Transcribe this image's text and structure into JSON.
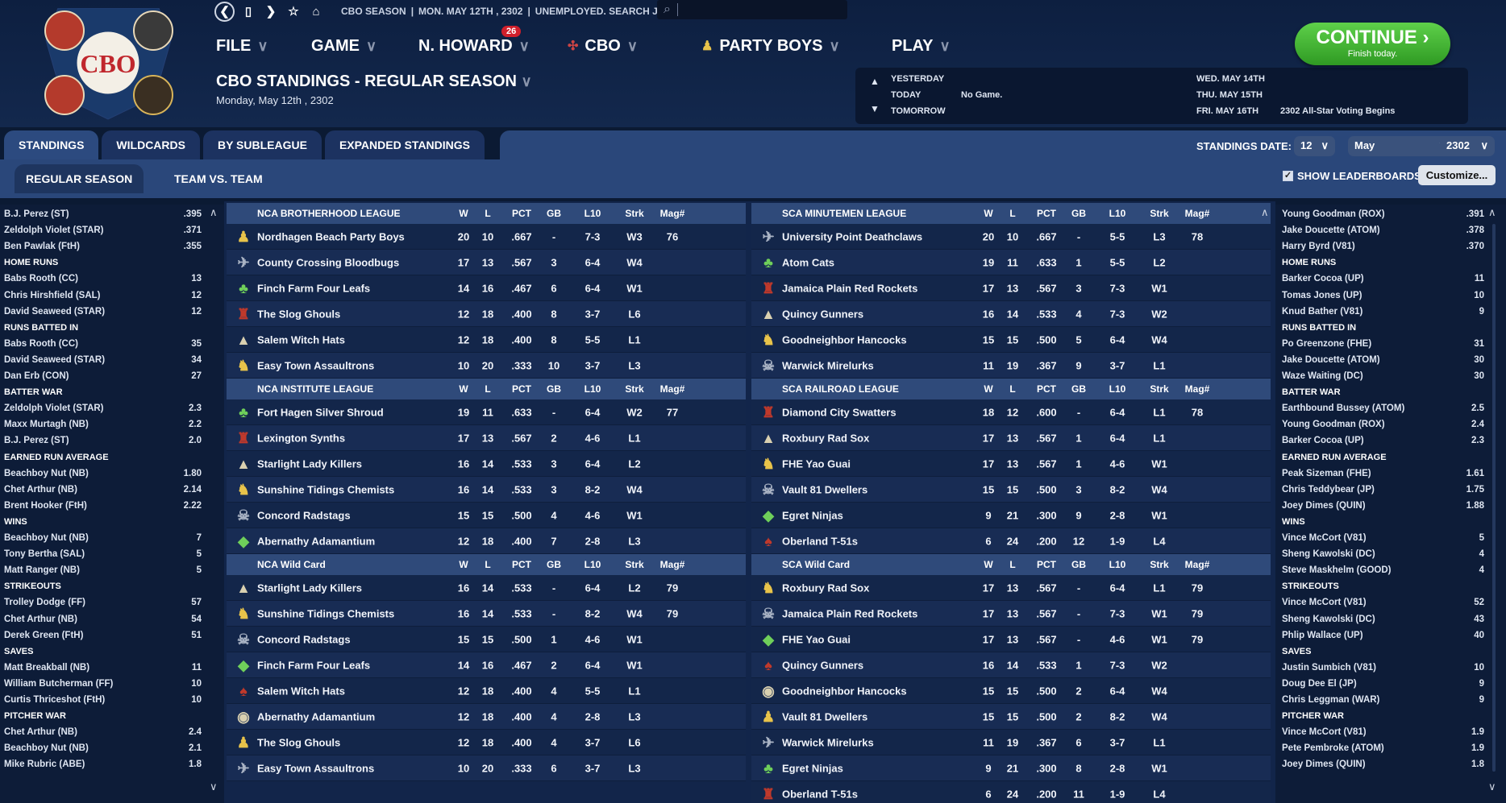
{
  "app": {
    "crumbs": [
      "CBO SEASON",
      "MON. MAY 12TH , 2302",
      "UNEMPLOYED. SEARCH JOBS..."
    ],
    "logo_text": "CBO",
    "nav_icons": [
      "back-icon",
      "forward-icon",
      "bookmark-icon",
      "star-icon",
      "home-icon"
    ]
  },
  "menu": {
    "file": "FILE",
    "game": "GAME",
    "manager": "N. HOWARD",
    "manager_badge": "26",
    "cbo": "CBO",
    "team": "PARTY BOYS",
    "play": "PLAY"
  },
  "page": {
    "title": "CBO STANDINGS - REGULAR SEASON",
    "date": "Monday, May 12th , 2302"
  },
  "calendar": {
    "yesterday": "YESTERDAY",
    "today": "TODAY",
    "today_value": "No Game.",
    "tomorrow": "TOMORROW",
    "d1": "WED. MAY 14TH",
    "d2": "THU. MAY 15TH",
    "d3": "FRI. MAY 16TH",
    "d3_value": "2302 All-Star Voting Begins"
  },
  "continue": {
    "label": "CONTINUE",
    "sub": "Finish today.",
    "color": "#3fb22f"
  },
  "tabs": [
    "STANDINGS",
    "WILDCARDS",
    "BY SUBLEAGUE",
    "EXPANDED STANDINGS"
  ],
  "subtabs": [
    "REGULAR SEASON",
    "TEAM VS. TEAM"
  ],
  "standings_date": {
    "label": "STANDINGS DATE:",
    "day": "12",
    "month": "May",
    "year": "2302"
  },
  "show_leaderboards": "SHOW LEADERBOARDS",
  "customize": "Customize...",
  "left_leaders": [
    [
      "B.J. Perez (ST)",
      ".395"
    ],
    [
      "Zeldolph Violet (STAR)",
      ".371"
    ],
    [
      "Ben Pawlak (FtH)",
      ".355"
    ],
    [
      "HOME RUNS",
      ""
    ],
    [
      "Babs Rooth (CC)",
      "13"
    ],
    [
      "Chris Hirshfield (SAL)",
      "12"
    ],
    [
      "David Seaweed (STAR)",
      "12"
    ],
    [
      "RUNS BATTED IN",
      ""
    ],
    [
      "Babs Rooth (CC)",
      "35"
    ],
    [
      "David Seaweed (STAR)",
      "34"
    ],
    [
      "Dan Erb (CON)",
      "27"
    ],
    [
      "BATTER WAR",
      ""
    ],
    [
      "Zeldolph Violet (STAR)",
      "2.3"
    ],
    [
      "Maxx Murtagh (NB)",
      "2.2"
    ],
    [
      "B.J. Perez (ST)",
      "2.0"
    ],
    [
      "EARNED RUN AVERAGE",
      ""
    ],
    [
      "Beachboy Nut (NB)",
      "1.80"
    ],
    [
      "Chet Arthur (NB)",
      "2.14"
    ],
    [
      "Brent Hooker (FtH)",
      "2.22"
    ],
    [
      "WINS",
      ""
    ],
    [
      "Beachboy Nut (NB)",
      "7"
    ],
    [
      "Tony Bertha (SAL)",
      "5"
    ],
    [
      "Matt Ranger (NB)",
      "5"
    ],
    [
      "STRIKEOUTS",
      ""
    ],
    [
      "Trolley Dodge (FF)",
      "57"
    ],
    [
      "Chet Arthur (NB)",
      "54"
    ],
    [
      "Derek Green (FtH)",
      "51"
    ],
    [
      "SAVES",
      ""
    ],
    [
      "Matt Breakball (NB)",
      "11"
    ],
    [
      "William Butcherman (FF)",
      "10"
    ],
    [
      "Curtis Thriceshot (FtH)",
      "10"
    ],
    [
      "PITCHER WAR",
      ""
    ],
    [
      "Chet Arthur (NB)",
      "2.4"
    ],
    [
      "Beachboy Nut (NB)",
      "2.1"
    ],
    [
      "Mike Rubric (ABE)",
      "1.8"
    ]
  ],
  "right_leaders": [
    [
      "Young Goodman (ROX)",
      ".391"
    ],
    [
      "Jake Doucette (ATOM)",
      ".378"
    ],
    [
      "Harry Byrd (V81)",
      ".370"
    ],
    [
      "HOME RUNS",
      ""
    ],
    [
      "Barker Cocoa (UP)",
      "11"
    ],
    [
      "Tomas Jones (UP)",
      "10"
    ],
    [
      "Knud Bather (V81)",
      "9"
    ],
    [
      "RUNS BATTED IN",
      ""
    ],
    [
      "Po Greenzone (FHE)",
      "31"
    ],
    [
      "Jake Doucette (ATOM)",
      "30"
    ],
    [
      "Waze Waiting (DC)",
      "30"
    ],
    [
      "BATTER WAR",
      ""
    ],
    [
      "Earthbound Bussey (ATOM)",
      "2.5"
    ],
    [
      "Young Goodman (ROX)",
      "2.4"
    ],
    [
      "Barker Cocoa (UP)",
      "2.3"
    ],
    [
      "EARNED RUN AVERAGE",
      ""
    ],
    [
      "Peak Sizeman (FHE)",
      "1.61"
    ],
    [
      "Chris Teddybear (JP)",
      "1.75"
    ],
    [
      "Joey Dimes (QUIN)",
      "1.88"
    ],
    [
      "WINS",
      ""
    ],
    [
      "Vince McCort (V81)",
      "5"
    ],
    [
      "Sheng Kawolski (DC)",
      "4"
    ],
    [
      "Steve Maskhelm (GOOD)",
      "4"
    ],
    [
      "STRIKEOUTS",
      ""
    ],
    [
      "Vince McCort (V81)",
      "52"
    ],
    [
      "Sheng Kawolski (DC)",
      "43"
    ],
    [
      "Phlip Wallace (UP)",
      "40"
    ],
    [
      "SAVES",
      ""
    ],
    [
      "Justin Sumbich (V81)",
      "10"
    ],
    [
      "Doug Dee El (JP)",
      "9"
    ],
    [
      "Chris Leggman (WAR)",
      "9"
    ],
    [
      "PITCHER WAR",
      ""
    ],
    [
      "Vince McCort (V81)",
      "1.9"
    ],
    [
      "Pete Pembroke (ATOM)",
      "1.9"
    ],
    [
      "Joey Dimes (QUIN)",
      "1.8"
    ]
  ],
  "columns": [
    "W",
    "L",
    "PCT",
    "GB",
    "L10",
    "Strk",
    "Mag#"
  ],
  "divisions": [
    {
      "name": "NCA BROTHERHOOD LEAGUE",
      "rows": [
        [
          "Nordhagen Beach Party Boys",
          "20",
          "10",
          ".667",
          "-",
          "7-3",
          "W3",
          "76"
        ],
        [
          "County Crossing Bloodbugs",
          "17",
          "13",
          ".567",
          "3",
          "6-4",
          "W4",
          ""
        ],
        [
          "Finch Farm Four Leafs",
          "14",
          "16",
          ".467",
          "6",
          "6-4",
          "W1",
          ""
        ],
        [
          "The Slog Ghouls",
          "12",
          "18",
          ".400",
          "8",
          "3-7",
          "L6",
          ""
        ],
        [
          "Salem Witch Hats",
          "12",
          "18",
          ".400",
          "8",
          "5-5",
          "L1",
          ""
        ],
        [
          "Easy Town Assaultrons",
          "10",
          "20",
          ".333",
          "10",
          "3-7",
          "L3",
          ""
        ]
      ]
    },
    {
      "name": "SCA MINUTEMEN LEAGUE",
      "rows": [
        [
          "University Point Deathclaws",
          "20",
          "10",
          ".667",
          "-",
          "5-5",
          "L3",
          "78"
        ],
        [
          "Atom Cats",
          "19",
          "11",
          ".633",
          "1",
          "5-5",
          "L2",
          ""
        ],
        [
          "Jamaica Plain Red Rockets",
          "17",
          "13",
          ".567",
          "3",
          "7-3",
          "W1",
          ""
        ],
        [
          "Quincy Gunners",
          "16",
          "14",
          ".533",
          "4",
          "7-3",
          "W2",
          ""
        ],
        [
          "Goodneighbor Hancocks",
          "15",
          "15",
          ".500",
          "5",
          "6-4",
          "W4",
          ""
        ],
        [
          "Warwick Mirelurks",
          "11",
          "19",
          ".367",
          "9",
          "3-7",
          "L1",
          ""
        ]
      ]
    },
    {
      "name": "NCA INSTITUTE LEAGUE",
      "rows": [
        [
          "Fort Hagen Silver Shroud",
          "19",
          "11",
          ".633",
          "-",
          "6-4",
          "W2",
          "77"
        ],
        [
          "Lexington Synths",
          "17",
          "13",
          ".567",
          "2",
          "4-6",
          "L1",
          ""
        ],
        [
          "Starlight Lady Killers",
          "16",
          "14",
          ".533",
          "3",
          "6-4",
          "L2",
          ""
        ],
        [
          "Sunshine Tidings Chemists",
          "16",
          "14",
          ".533",
          "3",
          "8-2",
          "W4",
          ""
        ],
        [
          "Concord Radstags",
          "15",
          "15",
          ".500",
          "4",
          "4-6",
          "W1",
          ""
        ],
        [
          "Abernathy Adamantium",
          "12",
          "18",
          ".400",
          "7",
          "2-8",
          "L3",
          ""
        ]
      ]
    },
    {
      "name": "SCA RAILROAD LEAGUE",
      "rows": [
        [
          "Diamond City Swatters",
          "18",
          "12",
          ".600",
          "-",
          "6-4",
          "L1",
          "78"
        ],
        [
          "Roxbury Rad Sox",
          "17",
          "13",
          ".567",
          "1",
          "6-4",
          "L1",
          ""
        ],
        [
          "FHE Yao Guai",
          "17",
          "13",
          ".567",
          "1",
          "4-6",
          "W1",
          ""
        ],
        [
          "Vault 81 Dwellers",
          "15",
          "15",
          ".500",
          "3",
          "8-2",
          "W4",
          ""
        ],
        [
          "Egret Ninjas",
          "9",
          "21",
          ".300",
          "9",
          "2-8",
          "W1",
          ""
        ],
        [
          "Oberland T-51s",
          "6",
          "24",
          ".200",
          "12",
          "1-9",
          "L4",
          ""
        ]
      ]
    },
    {
      "name": "NCA  Wild Card",
      "rows": [
        [
          "Starlight Lady Killers",
          "16",
          "14",
          ".533",
          "-",
          "6-4",
          "L2",
          "79"
        ],
        [
          "Sunshine Tidings Chemists",
          "16",
          "14",
          ".533",
          "-",
          "8-2",
          "W4",
          "79"
        ],
        [
          "Concord Radstags",
          "15",
          "15",
          ".500",
          "1",
          "4-6",
          "W1",
          ""
        ],
        [
          "Finch Farm Four Leafs",
          "14",
          "16",
          ".467",
          "2",
          "6-4",
          "W1",
          ""
        ],
        [
          "Salem Witch Hats",
          "12",
          "18",
          ".400",
          "4",
          "5-5",
          "L1",
          ""
        ],
        [
          "Abernathy Adamantium",
          "12",
          "18",
          ".400",
          "4",
          "2-8",
          "L3",
          ""
        ],
        [
          "The Slog Ghouls",
          "12",
          "18",
          ".400",
          "4",
          "3-7",
          "L6",
          ""
        ],
        [
          "Easy Town Assaultrons",
          "10",
          "20",
          ".333",
          "6",
          "3-7",
          "L3",
          ""
        ]
      ]
    },
    {
      "name": "SCA  Wild Card",
      "rows": [
        [
          "Roxbury Rad Sox",
          "17",
          "13",
          ".567",
          "-",
          "6-4",
          "L1",
          "79"
        ],
        [
          "Jamaica Plain Red Rockets",
          "17",
          "13",
          ".567",
          "-",
          "7-3",
          "W1",
          "79"
        ],
        [
          "FHE Yao Guai",
          "17",
          "13",
          ".567",
          "-",
          "4-6",
          "W1",
          "79"
        ],
        [
          "Quincy Gunners",
          "16",
          "14",
          ".533",
          "1",
          "7-3",
          "W2",
          ""
        ],
        [
          "Goodneighbor Hancocks",
          "15",
          "15",
          ".500",
          "2",
          "6-4",
          "W4",
          ""
        ],
        [
          "Vault 81 Dwellers",
          "15",
          "15",
          ".500",
          "2",
          "8-2",
          "W4",
          ""
        ],
        [
          "Warwick Mirelurks",
          "11",
          "19",
          ".367",
          "6",
          "3-7",
          "L1",
          ""
        ],
        [
          "Egret Ninjas",
          "9",
          "21",
          ".300",
          "8",
          "2-8",
          "W1",
          ""
        ],
        [
          "Oberland T-51s",
          "6",
          "24",
          ".200",
          "11",
          "1-9",
          "L4",
          ""
        ]
      ]
    }
  ]
}
